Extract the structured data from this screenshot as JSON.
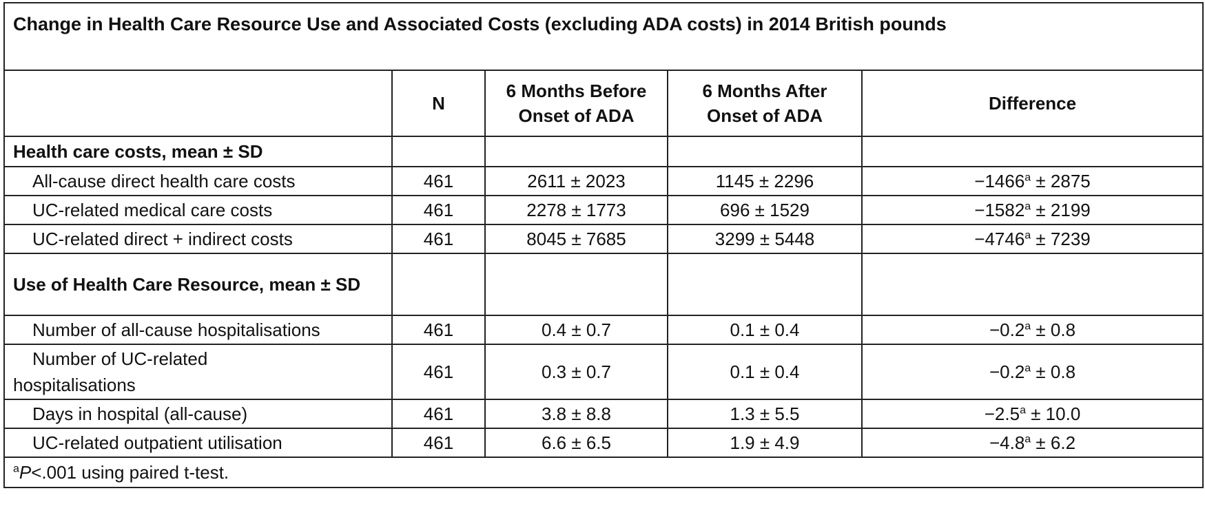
{
  "title": "Change in Health Care Resource Use and Associated Costs (excluding ADA costs) in 2014 British pounds",
  "columns": {
    "blank": "",
    "n": "N",
    "before": "6 Months Before Onset of ADA",
    "after": "6 Months After Onset of ADA",
    "difference": "Difference"
  },
  "sections": [
    {
      "label": "Health care costs, mean ± SD",
      "rows": [
        {
          "label": "All-cause direct health care costs",
          "n": "461",
          "before": "2611 ± 2023",
          "after": "1145 ± 2296",
          "diff_value": "−1466",
          "diff_sup": "a",
          "diff_sd": " ± 2875"
        },
        {
          "label": "UC-related medical care costs",
          "n": "461",
          "before": "2278 ± 1773",
          "after": "696 ± 1529",
          "diff_value": "−1582",
          "diff_sup": "a",
          "diff_sd": " ± 2199"
        },
        {
          "label": "UC-related direct + indirect costs",
          "n": "461",
          "before": "8045 ± 7685",
          "after": "3299 ± 5448",
          "diff_value": "−4746",
          "diff_sup": "a",
          "diff_sd": " ± 7239"
        }
      ]
    },
    {
      "label": "Use of Health Care Resource, mean ± SD",
      "rows": [
        {
          "label": "Number of all-cause hospitalisations",
          "n": "461",
          "before": "0.4 ± 0.7",
          "after": "0.1 ± 0.4",
          "diff_value": "−0.2",
          "diff_sup": "a",
          "diff_sd": " ± 0.8"
        },
        {
          "label": "Number of UC-related hospitalisations",
          "label_line1": "Number of UC-related",
          "label_line2": "hospitalisations",
          "n": "461",
          "before": "0.3 ± 0.7",
          "after": "0.1 ± 0.4",
          "diff_value": "−0.2",
          "diff_sup": "a",
          "diff_sd": " ± 0.8"
        },
        {
          "label": "Days in hospital (all-cause)",
          "n": "461",
          "before": "3.8 ± 8.8",
          "after": "1.3 ± 5.5",
          "diff_value": "−2.5",
          "diff_sup": "a",
          "diff_sd": " ± 10.0"
        },
        {
          "label": "UC-related outpatient utilisation",
          "n": "461",
          "before": "6.6 ± 6.5",
          "after": "1.9 ± 4.9",
          "diff_value": "−4.8",
          "diff_sup": "a",
          "diff_sd": " ± 6.2"
        }
      ]
    }
  ],
  "footnote": {
    "sup": "a",
    "p": "P",
    "text": "<.001 using paired t-test."
  }
}
